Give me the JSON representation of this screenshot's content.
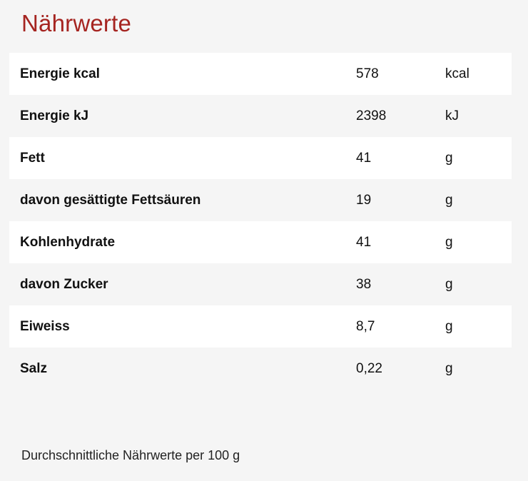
{
  "title": "Nährwerte",
  "rows": [
    {
      "name": "Energie kcal",
      "value": "578",
      "unit": "kcal"
    },
    {
      "name": "Energie kJ",
      "value": "2398",
      "unit": "kJ"
    },
    {
      "name": "Fett",
      "value": "41",
      "unit": "g"
    },
    {
      "name": "davon gesättigte Fettsäuren",
      "value": "19",
      "unit": "g"
    },
    {
      "name": "Kohlenhydrate",
      "value": "41",
      "unit": "g"
    },
    {
      "name": "davon Zucker",
      "value": "38",
      "unit": "g"
    },
    {
      "name": "Eiweiss",
      "value": "8,7",
      "unit": "g"
    },
    {
      "name": "Salz",
      "value": "0,22",
      "unit": "g"
    }
  ],
  "footnote": "Durchschnittliche Nährwerte per 100 g",
  "colors": {
    "title": "#a52420",
    "row_alt": "#ffffff",
    "background": "#f5f5f5"
  }
}
